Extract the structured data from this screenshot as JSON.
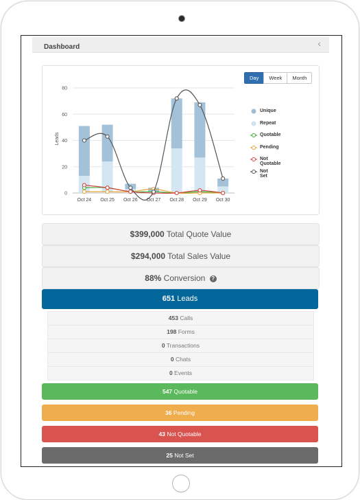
{
  "header": {
    "title": "Dashboard",
    "collapse_icon": "chevron-left-icon"
  },
  "range": {
    "options": [
      "Day",
      "Week",
      "Month"
    ],
    "active": "Day"
  },
  "legend": [
    {
      "label": "Unique",
      "symbol": "square",
      "color": "#9fbdd4"
    },
    {
      "label": "Repeat",
      "symbol": "square",
      "color": "#cfe3ef"
    },
    {
      "label": "Quotable",
      "symbol": "line",
      "color": "#3aaa35"
    },
    {
      "label": "Pending",
      "symbol": "line",
      "color": "#e5a43a"
    },
    {
      "label": "Not Quotable",
      "symbol": "line",
      "color": "#d64541"
    },
    {
      "label": "Not Set",
      "symbol": "line",
      "color": "#555555"
    }
  ],
  "chart_data": {
    "type": "bar",
    "ylabel": "Leads",
    "xlabel": "",
    "ylim": [
      0,
      80
    ],
    "yticks": [
      0,
      20,
      40,
      60,
      80
    ],
    "grid": true,
    "stacked": true,
    "legend_position": "right",
    "categories": [
      "Oct 24",
      "Oct 25",
      "Oct 26",
      "Oct 27",
      "Oct 28",
      "Oct 29",
      "Oct 30"
    ],
    "series": [
      {
        "name": "Repeat",
        "type": "bar",
        "color": "#d3e6f1",
        "values": [
          13,
          24,
          3,
          1,
          34,
          27,
          5
        ]
      },
      {
        "name": "Unique",
        "type": "bar",
        "color": "#a3c1d8",
        "values": [
          38,
          28,
          4,
          3,
          38,
          42,
          6
        ]
      },
      {
        "name": "Quotable",
        "type": "line",
        "color": "#3aaa35",
        "values": [
          4,
          4,
          1,
          1,
          0,
          1,
          0
        ]
      },
      {
        "name": "Pending",
        "type": "line",
        "color": "#e5a43a",
        "values": [
          1,
          1,
          1,
          3,
          0,
          0,
          0
        ]
      },
      {
        "name": "Not Quotable",
        "type": "line",
        "color": "#d64541",
        "values": [
          6,
          4,
          1,
          0,
          0,
          2,
          0
        ]
      },
      {
        "name": "Not Set",
        "type": "line",
        "color": "#555555",
        "values": [
          40,
          43,
          4,
          1,
          72,
          67,
          11
        ]
      }
    ]
  },
  "metrics": {
    "quote": {
      "value": "$399,000",
      "label": "Total Quote Value"
    },
    "sales": {
      "value": "$294,000",
      "label": "Total Sales Value"
    },
    "conversion": {
      "value": "88%",
      "label": "Conversion",
      "help_icon": "question-circle-icon"
    }
  },
  "leads": {
    "count": "651",
    "label": "Leads",
    "color": "#03679c",
    "breakdown": [
      {
        "count": "453",
        "label": "Calls"
      },
      {
        "count": "198",
        "label": "Forms"
      },
      {
        "count": "0",
        "label": "Transactions"
      },
      {
        "count": "0",
        "label": "Chats"
      },
      {
        "count": "0",
        "label": "Events"
      }
    ]
  },
  "statuses": [
    {
      "count": "547",
      "label": "Quotable",
      "color": "#5cb85c"
    },
    {
      "count": "36",
      "label": "Pending",
      "color": "#f0ad4e"
    },
    {
      "count": "43",
      "label": "Not Quotable",
      "color": "#d9534f"
    },
    {
      "count": "25",
      "label": "Not Set",
      "color": "#6b6b6b"
    }
  ]
}
